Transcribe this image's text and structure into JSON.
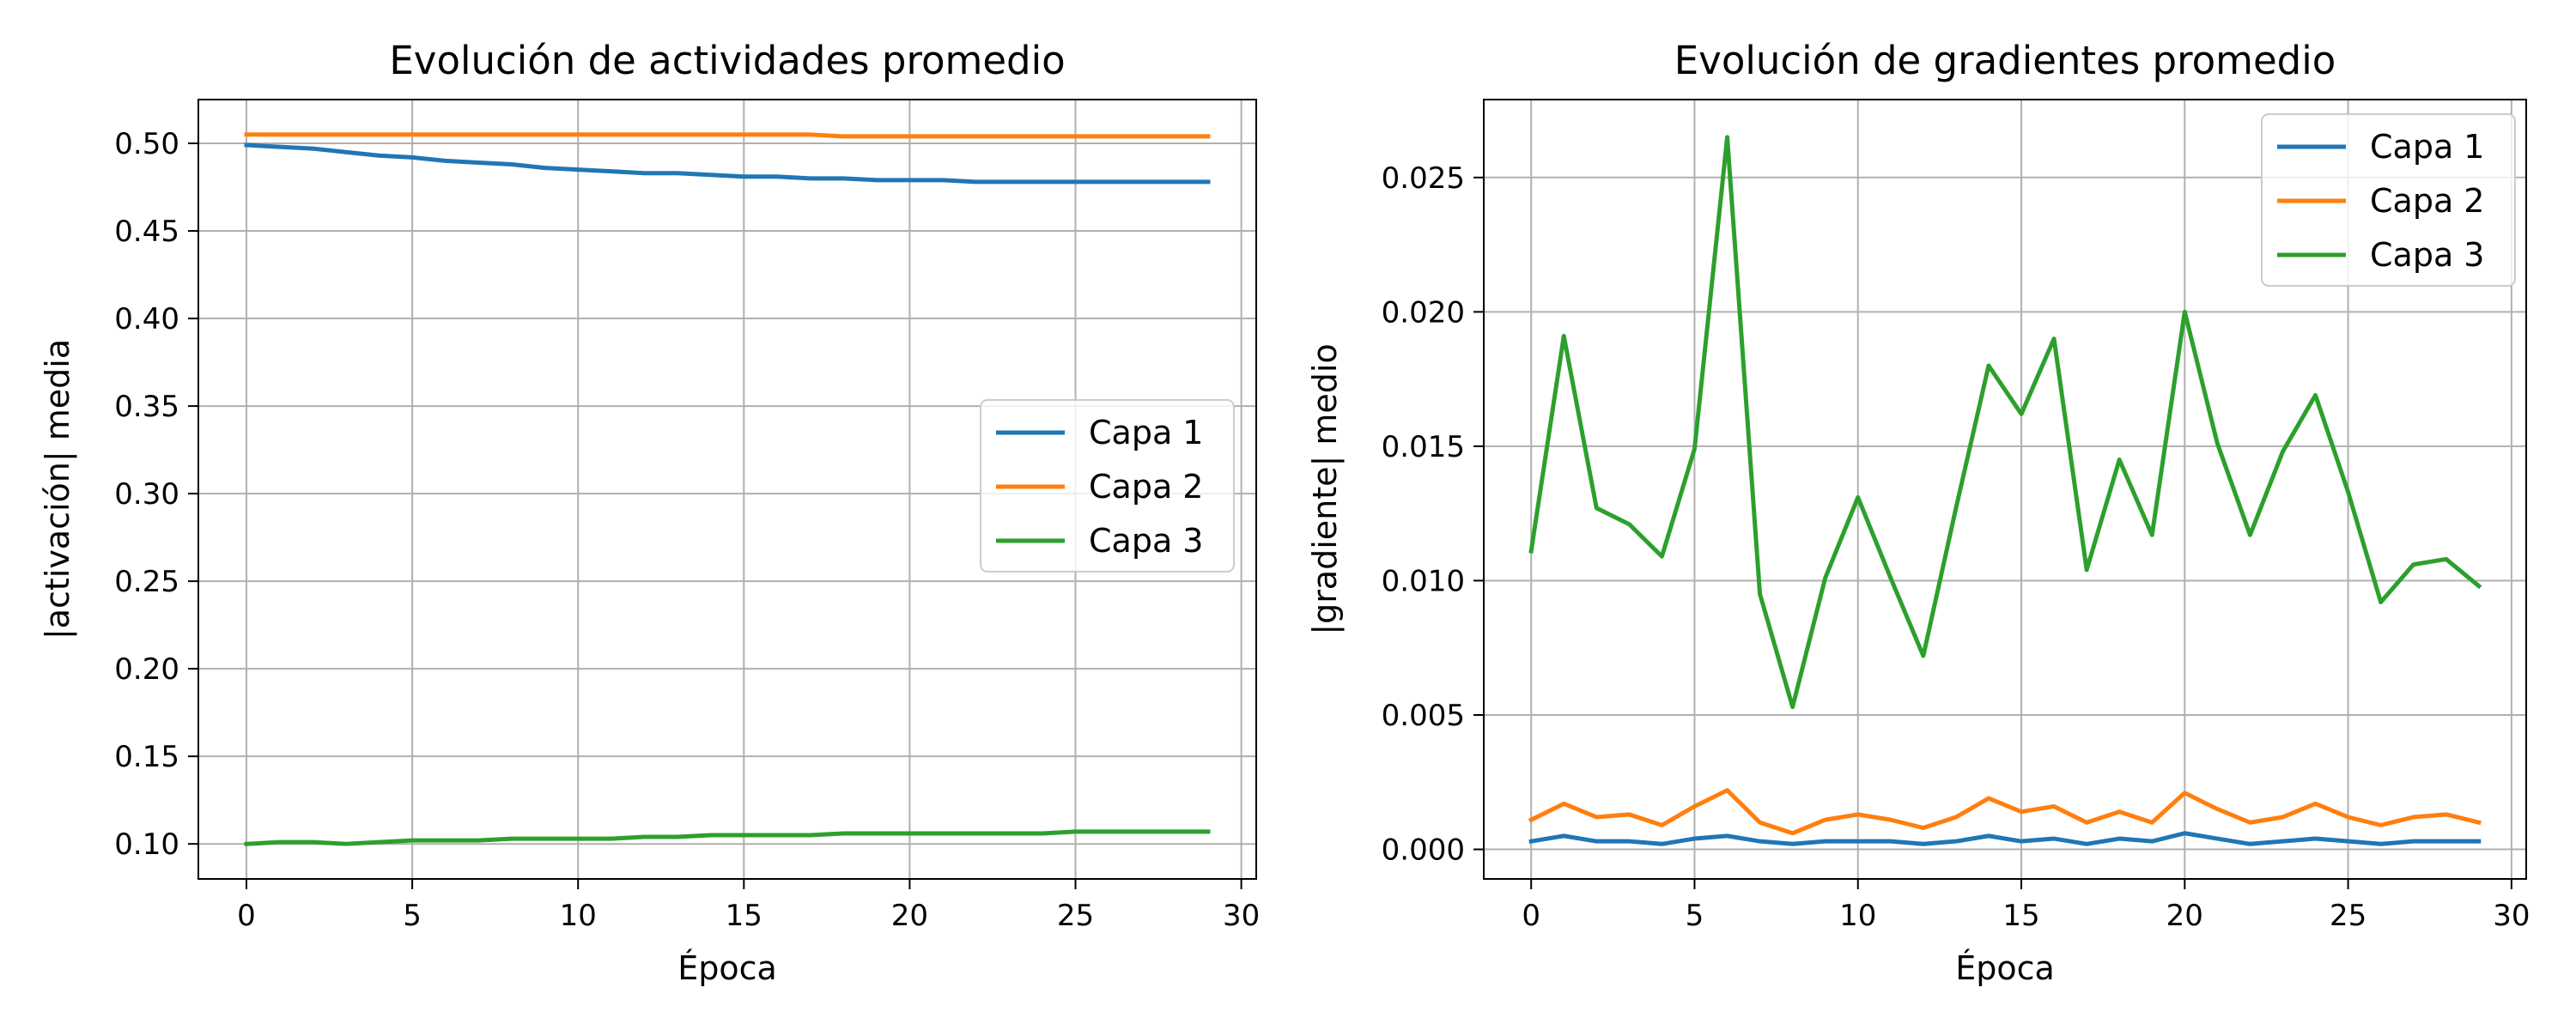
{
  "chart_data": [
    {
      "type": "line",
      "title": "Evolución de actividades promedio",
      "xlabel": "Época",
      "ylabel": "|activación| media",
      "xlim": [
        -1.45,
        30.45
      ],
      "ylim": [
        0.08,
        0.525
      ],
      "xticks": [
        0,
        5,
        10,
        15,
        20,
        25,
        30
      ],
      "yticks": [
        0.1,
        0.15,
        0.2,
        0.25,
        0.3,
        0.35,
        0.4,
        0.45,
        0.5
      ],
      "ytick_decimals": 2,
      "grid": true,
      "legend_position": "center-right",
      "x": [
        0,
        1,
        2,
        3,
        4,
        5,
        6,
        7,
        8,
        9,
        10,
        11,
        12,
        13,
        14,
        15,
        16,
        17,
        18,
        19,
        20,
        21,
        22,
        23,
        24,
        25,
        26,
        27,
        28,
        29
      ],
      "series": [
        {
          "name": "Capa 1",
          "color": "#1f77b4",
          "values": [
            0.499,
            0.498,
            0.497,
            0.495,
            0.493,
            0.492,
            0.49,
            0.489,
            0.488,
            0.486,
            0.485,
            0.484,
            0.483,
            0.483,
            0.482,
            0.481,
            0.481,
            0.48,
            0.48,
            0.479,
            0.479,
            0.479,
            0.478,
            0.478,
            0.478,
            0.478,
            0.478,
            0.478,
            0.478,
            0.478
          ]
        },
        {
          "name": "Capa 2",
          "color": "#ff7f0e",
          "values": [
            0.505,
            0.505,
            0.505,
            0.505,
            0.505,
            0.505,
            0.505,
            0.505,
            0.505,
            0.505,
            0.505,
            0.505,
            0.505,
            0.505,
            0.505,
            0.505,
            0.505,
            0.505,
            0.504,
            0.504,
            0.504,
            0.504,
            0.504,
            0.504,
            0.504,
            0.504,
            0.504,
            0.504,
            0.504,
            0.504
          ]
        },
        {
          "name": "Capa 3",
          "color": "#2ca02c",
          "values": [
            0.1,
            0.101,
            0.101,
            0.1,
            0.101,
            0.102,
            0.102,
            0.102,
            0.103,
            0.103,
            0.103,
            0.103,
            0.104,
            0.104,
            0.105,
            0.105,
            0.105,
            0.105,
            0.106,
            0.106,
            0.106,
            0.106,
            0.106,
            0.106,
            0.106,
            0.107,
            0.107,
            0.107,
            0.107,
            0.107
          ]
        }
      ]
    },
    {
      "type": "line",
      "title": "Evolución de gradientes promedio",
      "xlabel": "Época",
      "ylabel": "|gradiente| medio",
      "xlim": [
        -1.45,
        30.45
      ],
      "ylim": [
        -0.0011,
        0.0279
      ],
      "xticks": [
        0,
        5,
        10,
        15,
        20,
        25,
        30
      ],
      "yticks": [
        0.0,
        0.005,
        0.01,
        0.015,
        0.02,
        0.025
      ],
      "ytick_decimals": 3,
      "grid": true,
      "legend_position": "top-right",
      "x": [
        0,
        1,
        2,
        3,
        4,
        5,
        6,
        7,
        8,
        9,
        10,
        11,
        12,
        13,
        14,
        15,
        16,
        17,
        18,
        19,
        20,
        21,
        22,
        23,
        24,
        25,
        26,
        27,
        28,
        29
      ],
      "series": [
        {
          "name": "Capa 1",
          "color": "#1f77b4",
          "values": [
            0.0003,
            0.0005,
            0.0003,
            0.0003,
            0.0002,
            0.0004,
            0.0005,
            0.0003,
            0.0002,
            0.0003,
            0.0003,
            0.0003,
            0.0002,
            0.0003,
            0.0005,
            0.0003,
            0.0004,
            0.0002,
            0.0004,
            0.0003,
            0.0006,
            0.0004,
            0.0002,
            0.0003,
            0.0004,
            0.0003,
            0.0002,
            0.0003,
            0.0003,
            0.0003
          ]
        },
        {
          "name": "Capa 2",
          "color": "#ff7f0e",
          "values": [
            0.0011,
            0.0017,
            0.0012,
            0.0013,
            0.0009,
            0.0016,
            0.0022,
            0.001,
            0.0006,
            0.0011,
            0.0013,
            0.0011,
            0.0008,
            0.0012,
            0.0019,
            0.0014,
            0.0016,
            0.001,
            0.0014,
            0.001,
            0.0021,
            0.0015,
            0.001,
            0.0012,
            0.0017,
            0.0012,
            0.0009,
            0.0012,
            0.0013,
            0.001
          ]
        },
        {
          "name": "Capa 3",
          "color": "#2ca02c",
          "values": [
            0.0111,
            0.0191,
            0.0127,
            0.0121,
            0.0109,
            0.0149,
            0.0265,
            0.0095,
            0.0053,
            0.0101,
            0.0131,
            0.0101,
            0.0072,
            0.0127,
            0.018,
            0.0162,
            0.019,
            0.0104,
            0.0145,
            0.0117,
            0.02,
            0.0151,
            0.0117,
            0.0148,
            0.0169,
            0.0133,
            0.0092,
            0.0106,
            0.0108,
            0.0098
          ]
        }
      ]
    }
  ]
}
